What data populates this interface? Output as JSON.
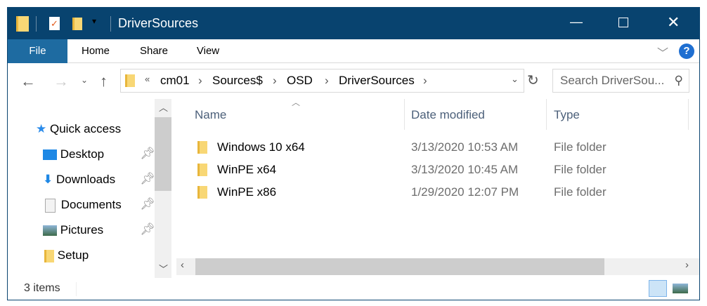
{
  "window": {
    "title": "DriverSources"
  },
  "ribbon": {
    "tabs": [
      "File",
      "Home",
      "Share",
      "View"
    ]
  },
  "address": {
    "breadcrumb": [
      "«",
      "cm01",
      "Sources$",
      "OSD",
      "DriverSources"
    ]
  },
  "search": {
    "placeholder": "Search DriverSou..."
  },
  "nav": {
    "quick_access": "Quick access",
    "items": [
      {
        "label": "Desktop",
        "icon": "desktop-icon",
        "pinned": true
      },
      {
        "label": "Downloads",
        "icon": "download-icon",
        "pinned": true
      },
      {
        "label": "Documents",
        "icon": "document-icon",
        "pinned": true
      },
      {
        "label": "Pictures",
        "icon": "pictures-icon",
        "pinned": true
      },
      {
        "label": "Setup",
        "icon": "folder-icon",
        "pinned": false
      }
    ]
  },
  "columns": {
    "name": "Name",
    "date": "Date modified",
    "type": "Type"
  },
  "files": [
    {
      "name": "Windows 10 x64",
      "date": "3/13/2020 10:53 AM",
      "type": "File folder"
    },
    {
      "name": "WinPE x64",
      "date": "3/13/2020 10:45 AM",
      "type": "File folder"
    },
    {
      "name": "WinPE x86",
      "date": "1/29/2020 12:07 PM",
      "type": "File folder"
    }
  ],
  "status": {
    "count": "3 items"
  },
  "colors": {
    "titlebar": "#08436f",
    "file_tab": "#1e6ba1"
  }
}
